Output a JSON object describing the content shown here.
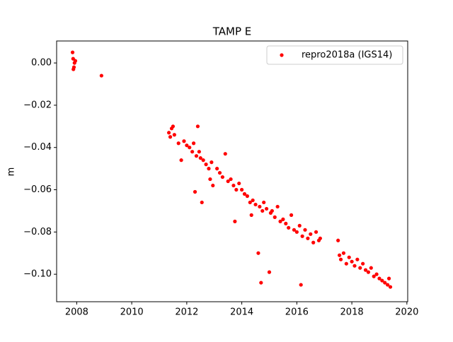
{
  "chart_data": {
    "type": "scatter",
    "title": "TAMP E",
    "y_label": "m",
    "xlim": [
      2007.27,
      2020.03
    ],
    "ylim": [
      -0.113,
      0.0104
    ],
    "xticks": [
      2008,
      2010,
      2012,
      2014,
      2016,
      2018,
      2020
    ],
    "yticks": [
      {
        "value": 0,
        "label": "0.00"
      },
      {
        "value": -0.02,
        "label": "−0.02"
      },
      {
        "value": -0.04,
        "label": "−0.04"
      },
      {
        "value": -0.06,
        "label": "−0.06"
      },
      {
        "value": -0.08,
        "label": "−0.08"
      },
      {
        "value": -0.1,
        "label": "−0.10"
      }
    ],
    "grid": false,
    "legend": "upper right",
    "series": [
      {
        "name": "repro2018a (IGS14)",
        "color": "#ff0000",
        "x": [
          2007.85,
          2007.87,
          2007.88,
          2007.9,
          2007.92,
          2007.95,
          2008.9,
          2011.35,
          2011.4,
          2011.45,
          2011.5,
          2011.55,
          2011.7,
          2011.8,
          2011.9,
          2012.0,
          2012.1,
          2012.2,
          2012.25,
          2012.3,
          2012.35,
          2012.4,
          2012.45,
          2012.5,
          2012.55,
          2012.6,
          2012.7,
          2012.8,
          2012.85,
          2012.9,
          2012.95,
          2013.1,
          2013.2,
          2013.3,
          2013.4,
          2013.5,
          2013.6,
          2013.7,
          2013.75,
          2013.8,
          2013.9,
          2014.0,
          2014.1,
          2014.2,
          2014.3,
          2014.35,
          2014.4,
          2014.5,
          2014.6,
          2014.65,
          2014.7,
          2014.75,
          2014.8,
          2014.9,
          2015.0,
          2015.05,
          2015.1,
          2015.2,
          2015.3,
          2015.4,
          2015.5,
          2015.6,
          2015.7,
          2015.8,
          2015.9,
          2016.0,
          2016.1,
          2016.15,
          2016.2,
          2016.3,
          2016.4,
          2016.5,
          2016.6,
          2016.7,
          2016.8,
          2016.85,
          2017.5,
          2017.55,
          2017.6,
          2017.7,
          2017.8,
          2017.9,
          2018.0,
          2018.1,
          2018.2,
          2018.3,
          2018.4,
          2018.5,
          2018.6,
          2018.7,
          2018.8,
          2018.9,
          2019.0,
          2019.1,
          2019.2,
          2019.3,
          2019.35,
          2019.4
        ],
        "values": [
          0.005,
          0.002,
          -0.003,
          -0.002,
          0.0,
          0.001,
          -0.006,
          -0.033,
          -0.035,
          -0.031,
          -0.03,
          -0.034,
          -0.038,
          -0.046,
          -0.037,
          -0.039,
          -0.04,
          -0.042,
          -0.038,
          -0.061,
          -0.044,
          -0.03,
          -0.042,
          -0.045,
          -0.066,
          -0.046,
          -0.048,
          -0.05,
          -0.055,
          -0.047,
          -0.058,
          -0.05,
          -0.052,
          -0.054,
          -0.043,
          -0.056,
          -0.055,
          -0.058,
          -0.075,
          -0.06,
          -0.057,
          -0.06,
          -0.062,
          -0.063,
          -0.066,
          -0.072,
          -0.065,
          -0.067,
          -0.09,
          -0.068,
          -0.104,
          -0.07,
          -0.066,
          -0.069,
          -0.099,
          -0.071,
          -0.07,
          -0.073,
          -0.068,
          -0.075,
          -0.074,
          -0.076,
          -0.078,
          -0.072,
          -0.079,
          -0.08,
          -0.077,
          -0.105,
          -0.082,
          -0.079,
          -0.083,
          -0.081,
          -0.085,
          -0.08,
          -0.084,
          -0.083,
          -0.084,
          -0.091,
          -0.093,
          -0.09,
          -0.095,
          -0.092,
          -0.094,
          -0.096,
          -0.093,
          -0.097,
          -0.095,
          -0.098,
          -0.099,
          -0.097,
          -0.101,
          -0.1,
          -0.102,
          -0.103,
          -0.104,
          -0.105,
          -0.102,
          -0.106
        ]
      }
    ]
  }
}
